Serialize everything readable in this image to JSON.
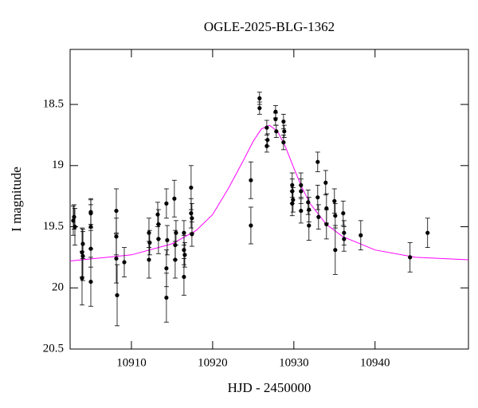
{
  "chart_data": {
    "type": "scatter",
    "title": "OGLE-2025-BLG-1362",
    "xlabel": "HJD - 2450000",
    "ylabel": "I magnitude",
    "xlim": [
      10902.45,
      10951.5
    ],
    "ylim": [
      20.5,
      18.05
    ],
    "xticks": [
      10910,
      10920,
      10930,
      10940
    ],
    "yticks": [
      18.5,
      19,
      19.5,
      20,
      20.5
    ],
    "points": {
      "color": "#000000",
      "x": [
        10902.84,
        10902.94,
        10903.04,
        10903.92,
        10903.92,
        10904.02,
        10904.02,
        10905.0,
        10905.0,
        10905.0,
        10905.0,
        10905.0,
        10908.14,
        10908.14,
        10908.14,
        10908.24,
        10909.12,
        10912.16,
        10912.16,
        10912.25,
        10913.24,
        10913.33,
        10913.33,
        10914.31,
        10914.31,
        10914.31,
        10914.41,
        10915.29,
        10915.39,
        10915.39,
        10915.49,
        10916.47,
        10916.47,
        10916.47,
        10916.57,
        10917.35,
        10917.35,
        10917.45,
        10917.45,
        10924.71,
        10924.71,
        10925.78,
        10925.78,
        10926.67,
        10926.76,
        10926.67,
        10927.75,
        10927.75,
        10927.84,
        10928.73,
        10928.82,
        10928.73,
        10929.8,
        10929.8,
        10929.8,
        10929.9,
        10930.88,
        10930.88,
        10930.88,
        10931.76,
        10931.86,
        10931.86,
        10932.94,
        10932.94,
        10933.04,
        10933.92,
        10934.02,
        10934.02,
        10935.0,
        10935.1,
        10935.1,
        10936.08,
        10936.18,
        10936.18,
        10938.24,
        10944.31,
        10946.47
      ],
      "values": [
        19.45,
        19.42,
        19.5,
        19.71,
        19.92,
        19.64,
        19.74,
        19.38,
        19.39,
        19.68,
        19.95,
        19.5,
        19.37,
        19.58,
        19.76,
        20.06,
        19.79,
        19.55,
        19.77,
        19.63,
        19.4,
        19.6,
        19.48,
        19.31,
        20.08,
        19.84,
        19.61,
        19.27,
        19.65,
        19.77,
        19.55,
        19.55,
        19.69,
        19.91,
        19.73,
        19.18,
        19.39,
        19.43,
        19.56,
        19.12,
        19.49,
        18.45,
        18.53,
        18.69,
        18.79,
        18.84,
        18.56,
        18.62,
        18.72,
        18.64,
        18.72,
        18.81,
        19.16,
        19.21,
        19.31,
        19.28,
        19.16,
        19.21,
        19.37,
        19.3,
        19.49,
        19.36,
        18.97,
        19.26,
        19.42,
        19.14,
        19.35,
        19.48,
        19.29,
        19.41,
        19.69,
        19.39,
        19.55,
        19.6,
        19.57,
        19.75,
        19.55
      ],
      "errors": [
        0.12,
        0.1,
        0.15,
        0.2,
        0.22,
        0.12,
        0.2,
        0.1,
        0.12,
        0.15,
        0.2,
        0.18,
        0.18,
        0.15,
        0.2,
        0.25,
        0.12,
        0.12,
        0.15,
        0.1,
        0.1,
        0.12,
        0.12,
        0.12,
        0.2,
        0.15,
        0.12,
        0.15,
        0.12,
        0.15,
        0.1,
        0.1,
        0.12,
        0.15,
        0.1,
        0.18,
        0.12,
        0.12,
        0.1,
        0.15,
        0.15,
        0.05,
        0.05,
        0.06,
        0.05,
        0.05,
        0.05,
        0.05,
        0.05,
        0.06,
        0.05,
        0.06,
        0.1,
        0.1,
        0.1,
        0.1,
        0.1,
        0.1,
        0.1,
        0.1,
        0.12,
        0.1,
        0.08,
        0.1,
        0.1,
        0.1,
        0.12,
        0.12,
        0.1,
        0.1,
        0.2,
        0.1,
        0.1,
        0.1,
        0.12,
        0.12,
        0.12
      ]
    },
    "model": {
      "color": "#ff00ff",
      "x": [
        10902.45,
        10910,
        10915,
        10918,
        10920,
        10922,
        10924,
        10925,
        10926,
        10927,
        10928,
        10929,
        10930,
        10931,
        10932,
        10934,
        10936,
        10940,
        10945,
        10951.5
      ],
      "values": [
        19.78,
        19.73,
        19.64,
        19.53,
        19.4,
        19.18,
        18.93,
        18.8,
        18.7,
        18.67,
        18.72,
        18.85,
        19.02,
        19.18,
        19.31,
        19.48,
        19.58,
        19.69,
        19.75,
        19.77
      ]
    }
  }
}
